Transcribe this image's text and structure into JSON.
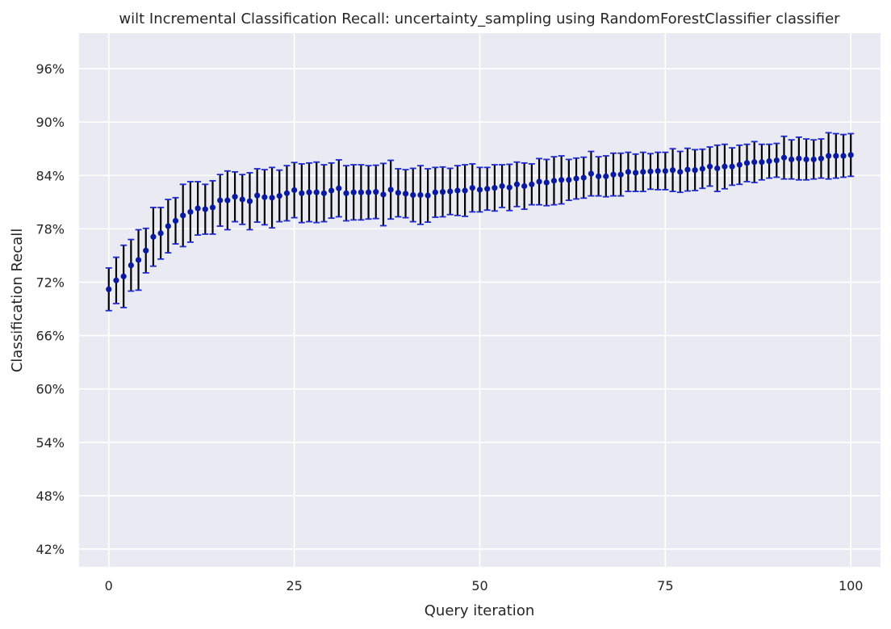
{
  "chart_data": {
    "type": "scatter",
    "title": "wilt Incremental Classification Recall: uncertainty_sampling using RandomForestClassifier classifier",
    "xlabel": "Query iteration",
    "ylabel": "Classification Recall",
    "xlim": [
      -4,
      104
    ],
    "ylim": [
      0.4,
      1.0
    ],
    "x_ticks": [
      0,
      25,
      50,
      75,
      100
    ],
    "x_tick_labels": [
      "0",
      "25",
      "50",
      "75",
      "100"
    ],
    "y_ticks": [
      0.42,
      0.48,
      0.54,
      0.6,
      0.66,
      0.72,
      0.78,
      0.84,
      0.9,
      0.96
    ],
    "y_tick_labels": [
      "42%",
      "48%",
      "54%",
      "60%",
      "66%",
      "72%",
      "78%",
      "84%",
      "90%",
      "96%"
    ],
    "grid": true,
    "background_color": "#eaeaf2",
    "point_color": "#0a1aa0",
    "cap_color": "#1f2bd1",
    "errorbar_color": "#000000",
    "series": [
      {
        "x": [
          0,
          1,
          2,
          3,
          4,
          5,
          6,
          7,
          8,
          9,
          10,
          11,
          12,
          13,
          14,
          15,
          16,
          17,
          18,
          19,
          20,
          21,
          22,
          23,
          24,
          25,
          26,
          27,
          28,
          29,
          30,
          31,
          32,
          33,
          34,
          35,
          36,
          37,
          38,
          39,
          40,
          41,
          42,
          43,
          44,
          45,
          46,
          47,
          48,
          49,
          50,
          51,
          52,
          53,
          54,
          55,
          56,
          57,
          58,
          59,
          60,
          61,
          62,
          63,
          64,
          65,
          66,
          67,
          68,
          69,
          70,
          71,
          72,
          73,
          74,
          75,
          76,
          77,
          78,
          79,
          80,
          81,
          82,
          83,
          84,
          85,
          86,
          87,
          88,
          89,
          90,
          91,
          92,
          93,
          94,
          95,
          96,
          97,
          98,
          99,
          100
        ],
        "y": [
          0.712,
          0.722,
          0.7265,
          0.739,
          0.745,
          0.7555,
          0.771,
          0.775,
          0.783,
          0.789,
          0.795,
          0.799,
          0.803,
          0.802,
          0.804,
          0.812,
          0.812,
          0.816,
          0.813,
          0.811,
          0.8175,
          0.8155,
          0.815,
          0.817,
          0.82,
          0.8235,
          0.82,
          0.821,
          0.821,
          0.82,
          0.823,
          0.8255,
          0.82,
          0.821,
          0.821,
          0.821,
          0.8215,
          0.8185,
          0.824,
          0.8205,
          0.8195,
          0.818,
          0.818,
          0.8175,
          0.821,
          0.8215,
          0.822,
          0.823,
          0.823,
          0.826,
          0.824,
          0.825,
          0.826,
          0.828,
          0.8265,
          0.83,
          0.828,
          0.83,
          0.833,
          0.832,
          0.834,
          0.835,
          0.835,
          0.8365,
          0.8375,
          0.842,
          0.839,
          0.839,
          0.841,
          0.841,
          0.844,
          0.843,
          0.844,
          0.8445,
          0.845,
          0.845,
          0.846,
          0.844,
          0.8465,
          0.846,
          0.8475,
          0.85,
          0.848,
          0.85,
          0.85,
          0.852,
          0.854,
          0.855,
          0.855,
          0.856,
          0.857,
          0.86,
          0.858,
          0.859,
          0.858,
          0.858,
          0.859,
          0.862,
          0.862,
          0.862,
          0.863
        ],
        "err": [
          0.024,
          0.026,
          0.035,
          0.029,
          0.034,
          0.025,
          0.033,
          0.029,
          0.03,
          0.026,
          0.035,
          0.034,
          0.03,
          0.028,
          0.03,
          0.029,
          0.033,
          0.028,
          0.028,
          0.032,
          0.03,
          0.031,
          0.034,
          0.029,
          0.031,
          0.031,
          0.033,
          0.033,
          0.034,
          0.032,
          0.031,
          0.032,
          0.031,
          0.031,
          0.031,
          0.03,
          0.03,
          0.035,
          0.033,
          0.027,
          0.027,
          0.03,
          0.033,
          0.03,
          0.028,
          0.028,
          0.026,
          0.028,
          0.029,
          0.027,
          0.025,
          0.024,
          0.026,
          0.024,
          0.026,
          0.025,
          0.026,
          0.023,
          0.026,
          0.026,
          0.027,
          0.027,
          0.023,
          0.023,
          0.023,
          0.025,
          0.022,
          0.023,
          0.024,
          0.024,
          0.022,
          0.021,
          0.022,
          0.02,
          0.021,
          0.021,
          0.024,
          0.023,
          0.024,
          0.023,
          0.022,
          0.022,
          0.026,
          0.025,
          0.021,
          0.022,
          0.021,
          0.023,
          0.02,
          0.019,
          0.019,
          0.024,
          0.022,
          0.024,
          0.023,
          0.022,
          0.022,
          0.026,
          0.025,
          0.024,
          0.024
        ]
      }
    ]
  }
}
